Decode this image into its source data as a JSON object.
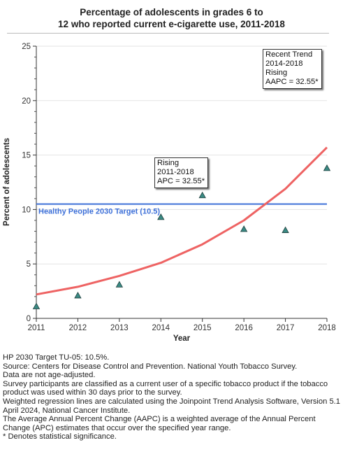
{
  "chart_data": {
    "type": "line",
    "title_line1": "Percentage of adolescents in grades 6 to",
    "title_line2": "12 who reported current e-cigarette use, 2011-2018",
    "xlabel": "Year",
    "ylabel": "Percent of adolescents",
    "xlim": [
      2011,
      2018
    ],
    "ylim": [
      0,
      25
    ],
    "x_ticks": [
      "2011",
      "2012",
      "2013",
      "2014",
      "2015",
      "2016",
      "2017",
      "2018"
    ],
    "y_ticks": [
      "0",
      "5",
      "10",
      "15",
      "20",
      "25"
    ],
    "observed": {
      "x": [
        2011,
        2012,
        2013,
        2014,
        2015,
        2016,
        2017,
        2018
      ],
      "y": [
        1.1,
        2.1,
        3.1,
        9.3,
        11.3,
        8.2,
        8.1,
        13.8
      ],
      "marker": "triangle",
      "color": "#3a8a84"
    },
    "trend": {
      "x": [
        2011,
        2012,
        2013,
        2014,
        2015,
        2016,
        2017,
        2018
      ],
      "y": [
        2.2,
        2.9,
        3.9,
        5.1,
        6.8,
        9.0,
        11.9,
        15.7
      ],
      "color": "#ee6363"
    },
    "target": {
      "value": 10.5,
      "label": "Healthy People 2030 Target (10.5)",
      "color": "#3c6fd8"
    },
    "callouts": {
      "segment": [
        "Rising",
        "2011-2018",
        "APC = 32.55*"
      ],
      "recent": [
        "Recent Trend",
        "2014-2018",
        "Rising",
        "AAPC = 32.55*"
      ]
    }
  },
  "notes": [
    "HP 2030 Target TU-05: 10.5%.",
    "Source: Centers for Disease Control and Prevention. National Youth Tobacco Survey.",
    "Data are not age-adjusted.",
    "Survey participants are classified as a current user of a specific tobacco product if the tobacco product was used within 30 days prior to the survey.",
    "Weighted regression lines are calculated using the Joinpoint Trend Analysis Software, Version 5.1 April 2024, National Cancer Institute.",
    "The Average Annual Percent Change (AAPC) is a weighted average of the Annual Percent Change (APC) estimates that occur over the specified year range.",
    "* Denotes statistical significance."
  ]
}
